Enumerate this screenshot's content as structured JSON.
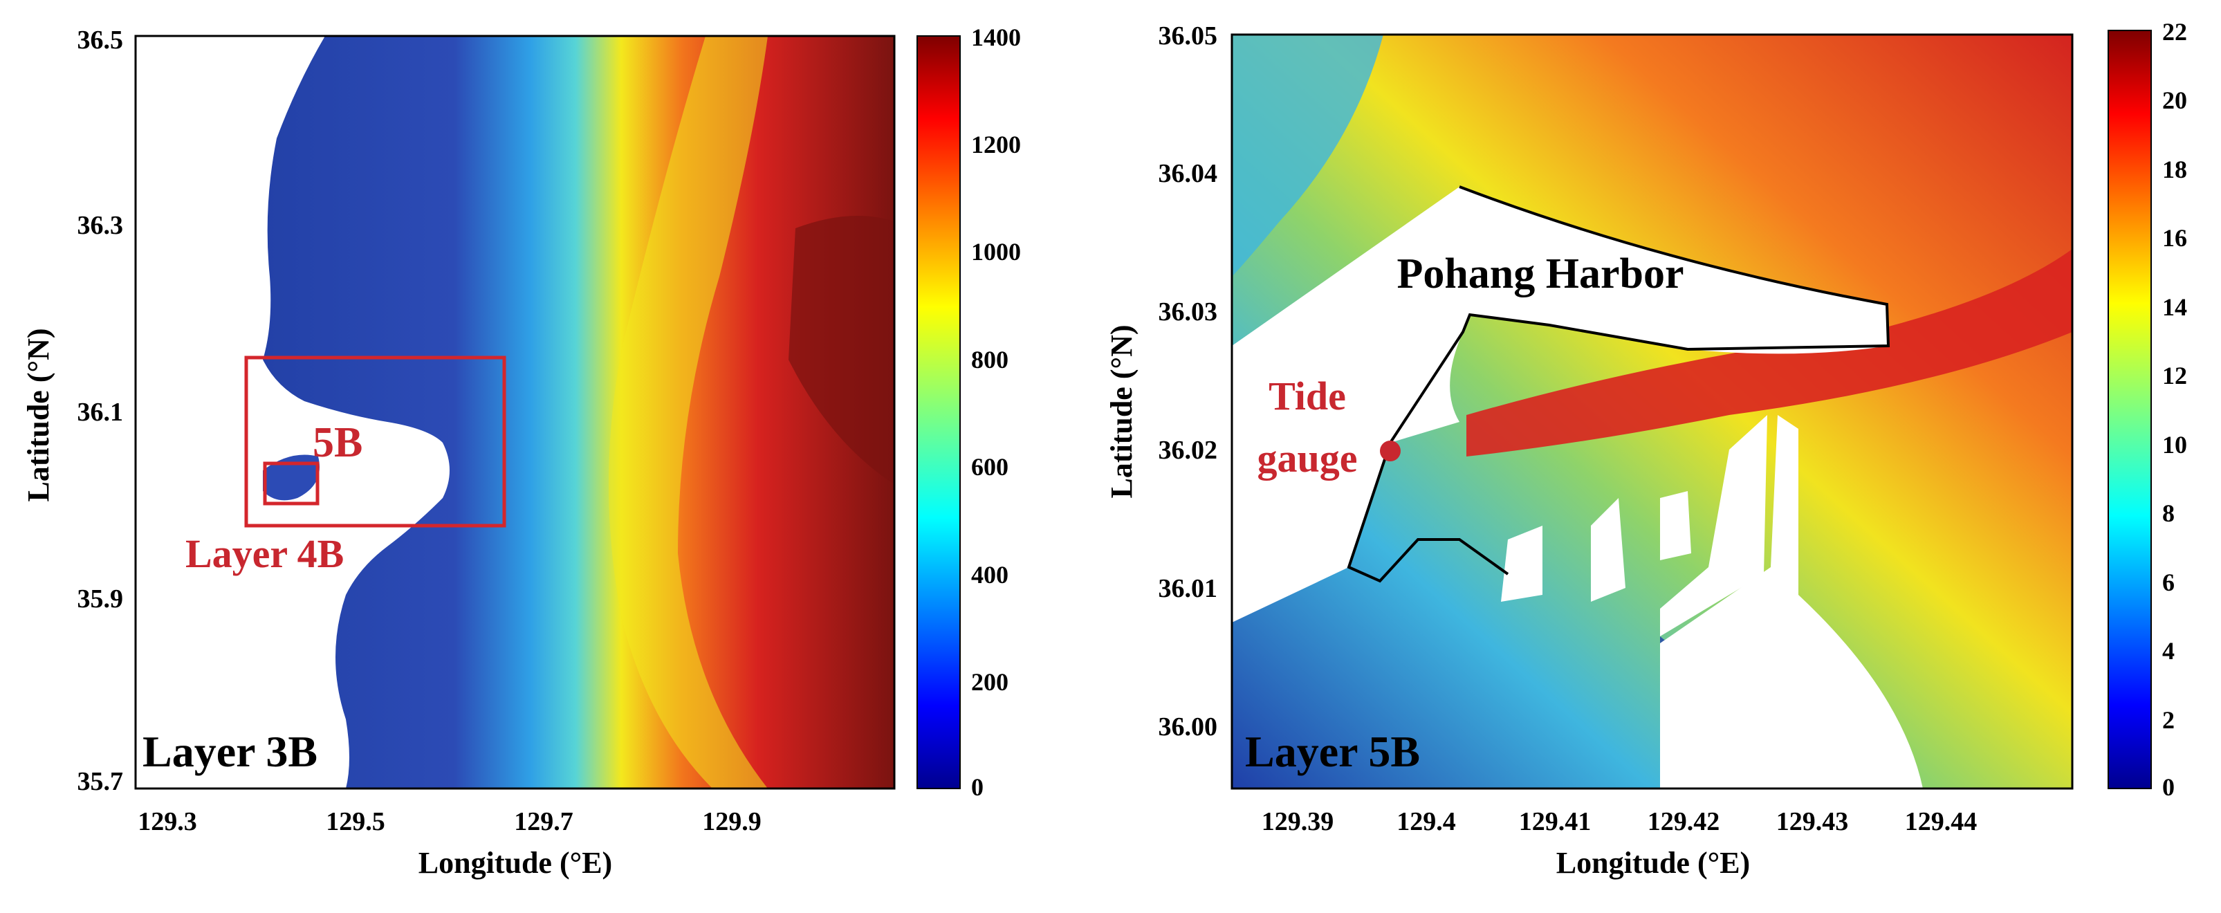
{
  "panels": [
    {
      "id": "layer3b",
      "panel_label": "Layer 3B",
      "x_axis": {
        "label": "Longitude (°E)",
        "ticks": [
          "129.3",
          "129.5",
          "129.7",
          "129.9"
        ]
      },
      "y_axis": {
        "label": "Latitude (°N)",
        "ticks": [
          "36.5",
          "36.3",
          "36.1",
          "35.9",
          "35.7"
        ]
      },
      "colorbar": {
        "ticks": [
          "1400",
          "1200",
          "1000",
          "800",
          "600",
          "400",
          "200",
          "0"
        ]
      },
      "annotations": {
        "inset_5b": "5B",
        "inset_4b": "Layer 4B"
      }
    },
    {
      "id": "layer5b",
      "panel_label": "Layer 5B",
      "x_axis": {
        "label": "Longitude (°E)",
        "ticks": [
          "129.39",
          "129.4",
          "129.41",
          "129.42",
          "129.43",
          "129.44"
        ]
      },
      "y_axis": {
        "label": "Latitude (°N)",
        "ticks": [
          "36.05",
          "36.04",
          "36.03",
          "36.02",
          "36.01",
          "36.00"
        ]
      },
      "colorbar": {
        "ticks": [
          "22",
          "20",
          "18",
          "16",
          "14",
          "12",
          "10",
          "8",
          "6",
          "4",
          "2",
          "0"
        ]
      },
      "annotations": {
        "harbor": "Pohang Harbor",
        "tide_line1": "Tide",
        "tide_line2": "gauge"
      }
    }
  ],
  "colors": {
    "jet": [
      "#00008f",
      "#0000ff",
      "#007fff",
      "#00ffff",
      "#7fff7f",
      "#ffff00",
      "#ff7f00",
      "#ff0000",
      "#7f0000"
    ],
    "annotation_red": "#c8272f",
    "axis": "#000000"
  }
}
